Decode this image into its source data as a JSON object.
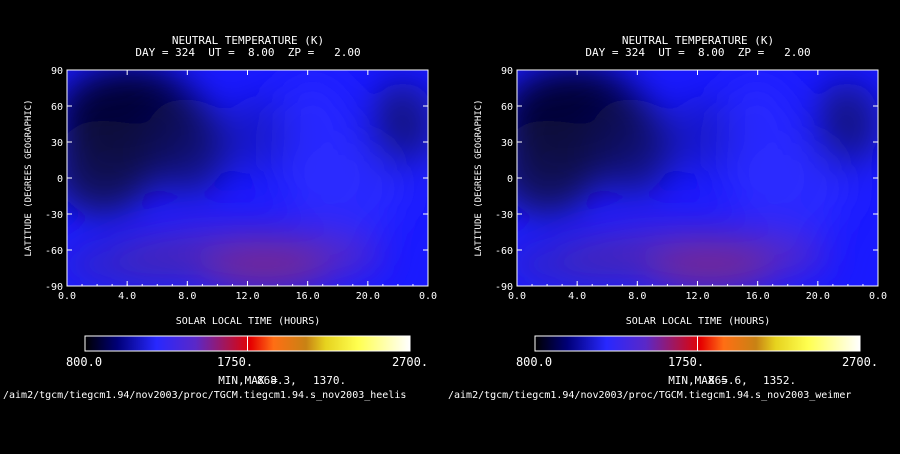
{
  "chart_data": [
    {
      "type": "heatmap",
      "title": "NEUTRAL TEMPERATURE (K)",
      "subtitle": "DAY = 324  UT =  8.00  ZP =   2.00",
      "xlabel": "SOLAR LOCAL TIME (HOURS)",
      "ylabel": "LATITUDE (DEGREES GEOGRAPHIC)",
      "xlim": [
        0,
        24
      ],
      "ylim": [
        -90,
        90
      ],
      "x_ticks": [
        "0.0",
        "4.0",
        "8.0",
        "12.0",
        "16.0",
        "20.0",
        "0.0"
      ],
      "y_ticks": [
        "90",
        "60",
        "30",
        "0",
        "-30",
        "-60",
        "-90"
      ],
      "colorbar": {
        "min_label": "800.0",
        "mid_label": "1750.",
        "max_label": "2700.",
        "min": 800,
        "max": 2700
      },
      "minmax_label": "MIN,MAX =",
      "min_value": "868.3,",
      "max_value": "1370.",
      "file_path": "/aim2/tgcm/tiegcm1.94/nov2003/proc/TGCM.tiegcm1.94.s_nov2003_heelis"
    },
    {
      "type": "heatmap",
      "title": "NEUTRAL TEMPERATURE (K)",
      "subtitle": "DAY = 324  UT =  8.00  ZP =   2.00",
      "xlabel": "SOLAR LOCAL TIME (HOURS)",
      "ylabel": "LATITUDE (DEGREES GEOGRAPHIC)",
      "xlim": [
        0,
        24
      ],
      "ylim": [
        -90,
        90
      ],
      "x_ticks": [
        "0.0",
        "4.0",
        "8.0",
        "12.0",
        "16.0",
        "20.0",
        "0.0"
      ],
      "y_ticks": [
        "90",
        "60",
        "30",
        "0",
        "-30",
        "-60",
        "-90"
      ],
      "colorbar": {
        "min_label": "800.0",
        "mid_label": "1750.",
        "max_label": "2700.",
        "min": 800,
        "max": 2700
      },
      "minmax_label": "MIN,MAX =",
      "min_value": "865.6,",
      "max_value": "1352.",
      "file_path": "/aim2/tgcm/tiegcm1.94/nov2003/proc/TGCM.tiegcm1.94.s_nov2003_weimer"
    }
  ]
}
